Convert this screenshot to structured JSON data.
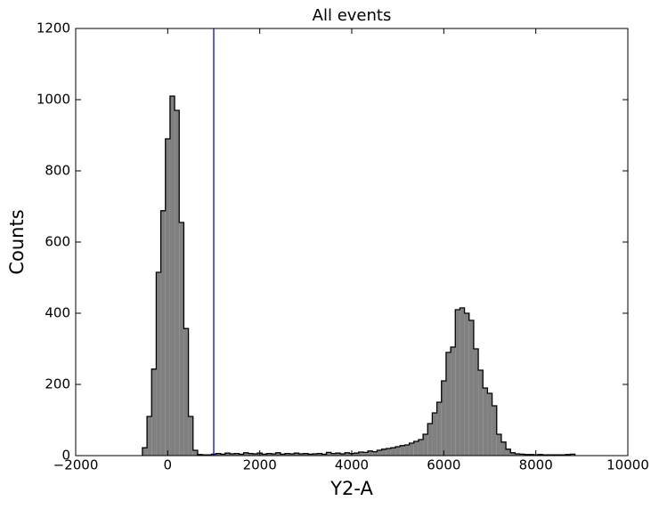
{
  "chart_data": {
    "type": "histogram",
    "title": "All events",
    "xlabel": "Y2-A",
    "ylabel": "Counts",
    "bins": [
      -550,
      -450,
      -350,
      -250,
      -150,
      -50,
      50,
      150,
      250,
      350,
      450,
      550,
      650,
      750,
      850,
      950,
      1050,
      1150,
      1250,
      1350,
      1450,
      1550,
      1650,
      1750,
      1850,
      1950,
      2050,
      2150,
      2250,
      2350,
      2450,
      2550,
      2650,
      2750,
      2850,
      2950,
      3050,
      3150,
      3250,
      3350,
      3450,
      3550,
      3650,
      3750,
      3850,
      3950,
      4050,
      4150,
      4250,
      4350,
      4450,
      4550,
      4650,
      4750,
      4850,
      4950,
      5050,
      5150,
      5250,
      5350,
      5450,
      5550,
      5650,
      5750,
      5850,
      5950,
      6050,
      6150,
      6250,
      6350,
      6450,
      6550,
      6650,
      6750,
      6850,
      6950,
      7050,
      7150,
      7250,
      7350,
      7450,
      7550,
      7650,
      7750,
      7850,
      7950,
      8050,
      8150,
      8250,
      8350,
      8450,
      8550,
      8650,
      8750,
      8850
    ],
    "values": [
      22,
      110,
      243,
      515,
      688,
      890,
      1010,
      970,
      655,
      357,
      110,
      15,
      3,
      2,
      2,
      4,
      6,
      4,
      7,
      5,
      6,
      4,
      8,
      6,
      5,
      7,
      4,
      6,
      5,
      8,
      4,
      6,
      5,
      7,
      5,
      6,
      4,
      5,
      6,
      4,
      9,
      6,
      7,
      5,
      8,
      6,
      7,
      10,
      9,
      13,
      11,
      15,
      18,
      20,
      22,
      25,
      28,
      30,
      35,
      40,
      45,
      60,
      90,
      120,
      150,
      210,
      290,
      305,
      410,
      415,
      400,
      380,
      300,
      240,
      190,
      175,
      140,
      60,
      38,
      18,
      8,
      5,
      4,
      3,
      3,
      2,
      3,
      2,
      2,
      2,
      2,
      2,
      3,
      4
    ],
    "color": "#808080",
    "edgecolor": "#000000",
    "vlines": [
      {
        "x": 1000,
        "color": "#0000ff"
      }
    ],
    "xlim": [
      -2000,
      10000
    ],
    "xticks": [
      {
        "value": -2000,
        "label": "−2000"
      },
      0,
      2000,
      4000,
      6000,
      8000,
      10000
    ],
    "ylim": [
      0,
      1200
    ],
    "yticks": [
      0,
      200,
      400,
      600,
      800,
      1000,
      1200
    ]
  }
}
